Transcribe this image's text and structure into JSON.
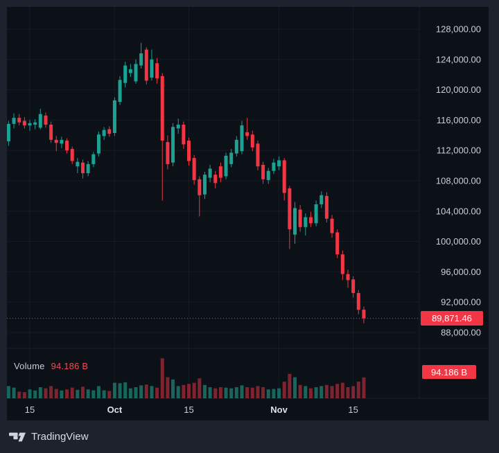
{
  "colors": {
    "up": "#1ca192",
    "down": "#f23645",
    "volume_up": "rgba(34,171,148,0.55)",
    "volume_down": "rgba(242,54,69,0.50)",
    "badge_bg": "#f23645",
    "panel_bg": "#0c1118",
    "frame_bg": "#1e222d",
    "axis_text": "#c9cfda",
    "grid": "rgba(151,164,192,0.07)"
  },
  "price_scale": {
    "ticks": [
      "128,000.00",
      "124,000.00",
      "120,000.00",
      "116,000.00",
      "112,000.00",
      "108,000.00",
      "104,000.00",
      "100,000.00",
      "96,000.00",
      "92,000.00",
      "88,000.00"
    ]
  },
  "time_scale": {
    "ticks": [
      {
        "label": "15",
        "candle_index": 4,
        "bold": false
      },
      {
        "label": "Oct",
        "candle_index": 20,
        "bold": true
      },
      {
        "label": "15",
        "candle_index": 34,
        "bold": false
      },
      {
        "label": "Nov",
        "candle_index": 51,
        "bold": true
      },
      {
        "label": "15",
        "candle_index": 65,
        "bold": false
      }
    ]
  },
  "volume_legend": {
    "label": "Volume",
    "value": "94.186 B"
  },
  "badges": {
    "last_price": "89,871.46",
    "volume": "94.186 B"
  },
  "footer": {
    "brand": "TradingView"
  },
  "chart_data": {
    "type": "candlestick",
    "title": "",
    "description": "Daily candlesticks with volume subpane; price falls from ~126,200 peak in early October to last price 89,871.46",
    "price_unit": "USD",
    "ohlc_values_in": "thousands of USD",
    "volume_unit": "billions",
    "ylim": [
      88000,
      128000
    ],
    "y_tick_step": 4000,
    "grid": true,
    "last_price": 89871.46,
    "latest_volume_billions": 94.186,
    "time_tick_candle_indices": {
      "Sep 15": 4,
      "Oct 1": 20,
      "Oct 15": 34,
      "Nov 1": 51,
      "Nov 15": 65
    },
    "candles_format": [
      "open",
      "high",
      "low",
      "close",
      "volume_billions"
    ],
    "candles": [
      [
        113.2,
        115.9,
        112.6,
        115.5,
        55
      ],
      [
        115.5,
        116.9,
        114.9,
        116.3,
        48
      ],
      [
        116.3,
        116.8,
        115.3,
        115.7,
        30
      ],
      [
        115.9,
        116.4,
        114.9,
        115.3,
        28
      ],
      [
        115.3,
        116.0,
        114.6,
        115.6,
        40
      ],
      [
        115.4,
        116.1,
        114.8,
        115.7,
        35
      ],
      [
        115.0,
        117.5,
        114.8,
        116.8,
        50
      ],
      [
        116.6,
        117.0,
        115.0,
        115.4,
        45
      ],
      [
        115.4,
        115.8,
        113.0,
        113.4,
        55
      ],
      [
        113.4,
        113.9,
        111.9,
        113.0,
        42
      ],
      [
        112.9,
        113.8,
        112.3,
        113.4,
        35
      ],
      [
        113.3,
        113.6,
        111.6,
        112.0,
        40
      ],
      [
        112.2,
        112.5,
        110.2,
        110.6,
        48
      ],
      [
        109.9,
        111.0,
        109.0,
        110.5,
        38
      ],
      [
        110.4,
        110.8,
        108.3,
        109.0,
        52
      ],
      [
        109.0,
        110.6,
        108.6,
        110.2,
        40
      ],
      [
        110.2,
        111.8,
        109.8,
        111.5,
        36
      ],
      [
        111.6,
        114.5,
        111.2,
        114.1,
        55
      ],
      [
        113.9,
        115.1,
        113.4,
        114.7,
        36
      ],
      [
        114.8,
        115.2,
        113.8,
        114.2,
        33
      ],
      [
        114.3,
        119.0,
        113.9,
        118.6,
        70
      ],
      [
        118.4,
        121.8,
        118.0,
        121.3,
        68
      ],
      [
        120.9,
        123.7,
        120.3,
        123.2,
        72
      ],
      [
        122.2,
        123.4,
        121.7,
        122.7,
        45
      ],
      [
        121.1,
        124.0,
        120.8,
        123.4,
        50
      ],
      [
        123.2,
        126.2,
        122.8,
        124.8,
        58
      ],
      [
        125.3,
        125.6,
        120.7,
        121.2,
        62
      ],
      [
        121.6,
        125.3,
        121.2,
        124.0,
        55
      ],
      [
        123.5,
        124.2,
        120.8,
        121.5,
        48
      ],
      [
        121.8,
        122.2,
        105.4,
        113.3,
        180
      ],
      [
        113.1,
        114.0,
        109.5,
        110.2,
        95
      ],
      [
        110.4,
        115.6,
        109.9,
        115.1,
        85
      ],
      [
        114.9,
        116.2,
        114.2,
        115.4,
        55
      ],
      [
        115.4,
        115.8,
        112.2,
        112.8,
        60
      ],
      [
        113.3,
        113.7,
        110.0,
        110.6,
        65
      ],
      [
        111.0,
        111.4,
        107.5,
        108.1,
        70
      ],
      [
        108.2,
        108.6,
        103.3,
        106.1,
        90
      ],
      [
        106.2,
        109.2,
        105.6,
        108.8,
        60
      ],
      [
        108.4,
        110.1,
        107.8,
        109.6,
        50
      ],
      [
        108.8,
        109.3,
        107.0,
        107.7,
        45
      ],
      [
        109.9,
        110.4,
        107.8,
        108.4,
        50
      ],
      [
        108.6,
        111.7,
        108.2,
        111.3,
        48
      ],
      [
        110.2,
        112.2,
        109.8,
        111.7,
        45
      ],
      [
        111.6,
        113.9,
        111.2,
        113.4,
        50
      ],
      [
        111.9,
        115.9,
        111.5,
        115.3,
        58
      ],
      [
        114.4,
        116.3,
        113.4,
        113.9,
        50
      ],
      [
        114.1,
        114.6,
        111.9,
        112.4,
        48
      ],
      [
        112.9,
        113.3,
        109.4,
        109.9,
        55
      ],
      [
        110.1,
        110.5,
        107.6,
        108.2,
        50
      ],
      [
        108.1,
        109.7,
        107.6,
        109.3,
        40
      ],
      [
        109.3,
        110.9,
        108.9,
        110.4,
        42
      ],
      [
        109.9,
        111.2,
        109.4,
        110.7,
        45
      ],
      [
        110.7,
        111.0,
        105.4,
        106.4,
        75
      ],
      [
        107.0,
        107.3,
        99.0,
        101.6,
        110
      ],
      [
        100.9,
        105.2,
        99.7,
        104.4,
        95
      ],
      [
        104.2,
        104.8,
        101.3,
        101.9,
        60
      ],
      [
        101.9,
        103.7,
        100.8,
        103.2,
        55
      ],
      [
        103.2,
        103.9,
        101.9,
        102.4,
        45
      ],
      [
        102.4,
        105.4,
        102.0,
        104.9,
        50
      ],
      [
        104.9,
        106.6,
        104.4,
        106.1,
        55
      ],
      [
        106.0,
        106.5,
        102.5,
        103.0,
        60
      ],
      [
        103.0,
        103.5,
        100.5,
        101.1,
        55
      ],
      [
        101.2,
        101.6,
        97.8,
        98.3,
        65
      ],
      [
        98.3,
        98.8,
        94.9,
        95.7,
        70
      ],
      [
        95.7,
        96.3,
        93.9,
        94.9,
        50
      ],
      [
        95.0,
        95.4,
        92.6,
        93.2,
        55
      ],
      [
        93.2,
        93.6,
        90.4,
        91.0,
        75
      ],
      [
        91.0,
        91.4,
        89.2,
        89.87146,
        94.186
      ]
    ]
  }
}
